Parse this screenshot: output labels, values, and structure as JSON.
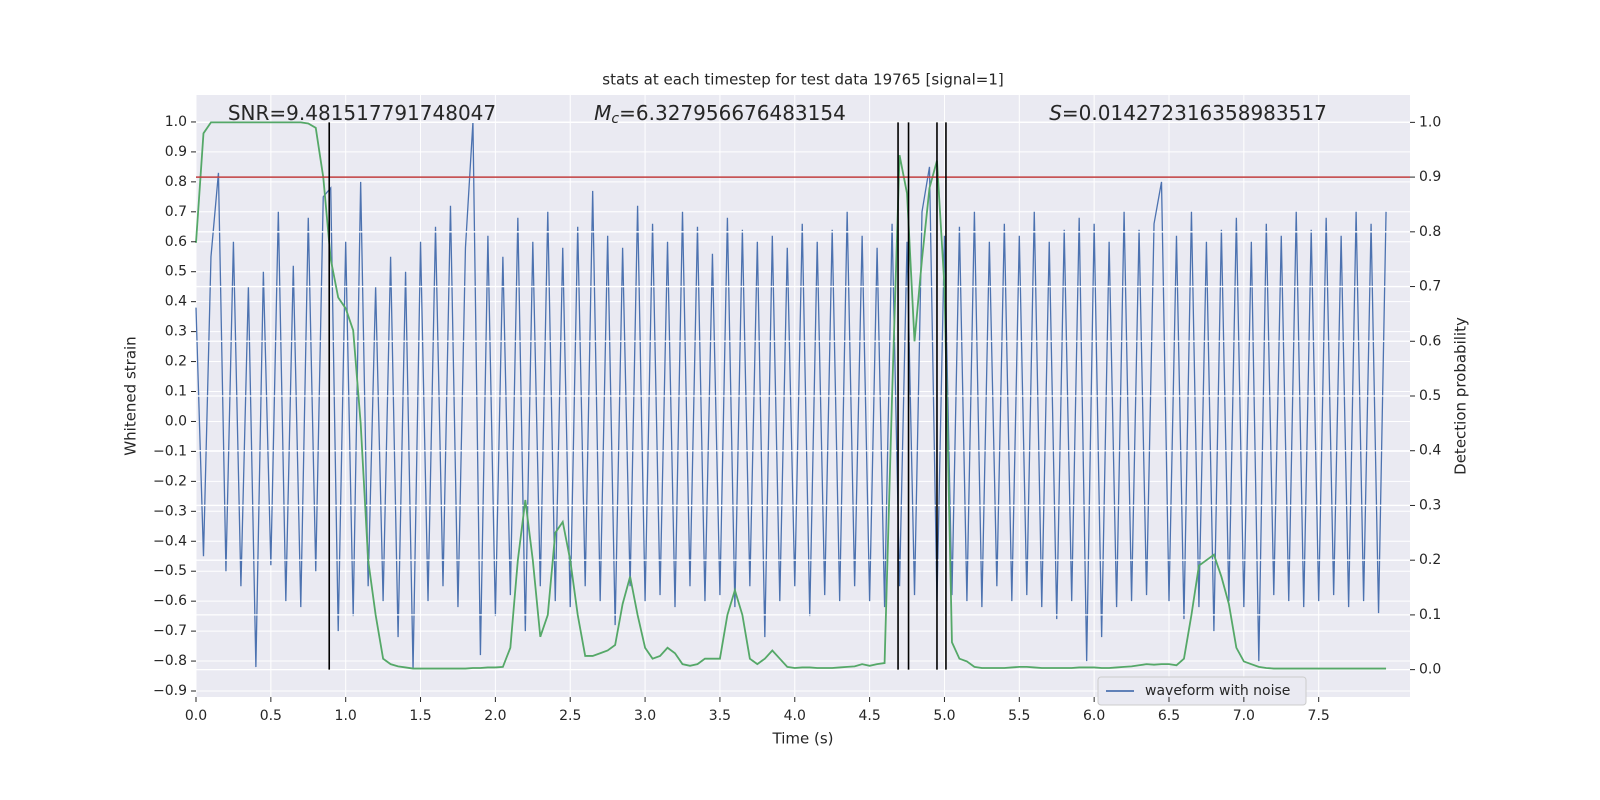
{
  "chart_data": {
    "type": "line",
    "title": "stats at each timestep for test data 19765 [signal=1]",
    "xlabel": "Time (s)",
    "ylabel": "Whitened strain",
    "y2label": "Detection probability",
    "xlim": [
      0,
      8.11
    ],
    "ylim": [
      -0.92,
      1.09
    ],
    "y2lim": [
      -0.05,
      1.05
    ],
    "xticks": [
      {
        "value": 0,
        "label": "0.0"
      },
      0.5,
      {
        "value": 1,
        "label": "1.0"
      },
      1.5,
      {
        "value": 2,
        "label": "2.0"
      },
      2.5,
      {
        "value": 3,
        "label": "3.0"
      },
      3.5,
      {
        "value": 4,
        "label": "4.0"
      },
      4.5,
      {
        "value": 5,
        "label": "5.0"
      },
      5.5,
      {
        "value": 6,
        "label": "6.0"
      },
      6.5,
      {
        "value": 7,
        "label": "7.0"
      },
      7.5
    ],
    "yticks": [
      {
        "value": -0.9,
        "label": "−0.9"
      },
      {
        "value": -0.8,
        "label": "−0.8"
      },
      {
        "value": -0.7,
        "label": "−0.7"
      },
      {
        "value": -0.6,
        "label": "−0.6"
      },
      {
        "value": -0.5,
        "label": "−0.5"
      },
      {
        "value": -0.4,
        "label": "−0.4"
      },
      {
        "value": -0.3,
        "label": "−0.3"
      },
      {
        "value": -0.2,
        "label": "−0.2"
      },
      {
        "value": -0.1,
        "label": "−0.1"
      },
      {
        "value": 0,
        "label": "0.0"
      },
      0.1,
      0.2,
      0.3,
      0.4,
      0.5,
      0.6,
      0.7,
      0.8,
      0.9,
      {
        "value": 1,
        "label": "1.0"
      }
    ],
    "y2ticks": [
      {
        "value": 0,
        "label": "0.0"
      },
      0.1,
      0.2,
      0.3,
      0.4,
      0.5,
      0.6,
      0.7,
      0.8,
      0.9,
      {
        "value": 1,
        "label": "1.0"
      }
    ],
    "grid": true,
    "legend": "lower right",
    "x": [
      0,
      0.05,
      0.1,
      0.15,
      0.2,
      0.25,
      0.3,
      0.35,
      0.4,
      0.45,
      0.5,
      0.55,
      0.6,
      0.65,
      0.7,
      0.75,
      0.8,
      0.85,
      0.9,
      0.95,
      1,
      1.05,
      1.1,
      1.15,
      1.2,
      1.25,
      1.3,
      1.35,
      1.4,
      1.45,
      1.5,
      1.55,
      1.6,
      1.65,
      1.7,
      1.75,
      1.8,
      1.85,
      1.9,
      1.95,
      2,
      2.05,
      2.1,
      2.15,
      2.2,
      2.25,
      2.3,
      2.35,
      2.4,
      2.45,
      2.5,
      2.55,
      2.6,
      2.65,
      2.7,
      2.75,
      2.8,
      2.85,
      2.9,
      2.95,
      3,
      3.05,
      3.1,
      3.15,
      3.2,
      3.25,
      3.3,
      3.35,
      3.4,
      3.45,
      3.5,
      3.55,
      3.6,
      3.65,
      3.7,
      3.75,
      3.8,
      3.85,
      3.9,
      3.95,
      4,
      4.05,
      4.1,
      4.15,
      4.2,
      4.25,
      4.3,
      4.35,
      4.4,
      4.45,
      4.5,
      4.55,
      4.6,
      4.65,
      4.7,
      4.75,
      4.8,
      4.85,
      4.9,
      4.95,
      5,
      5.05,
      5.1,
      5.15,
      5.2,
      5.25,
      5.3,
      5.35,
      5.4,
      5.45,
      5.5,
      5.55,
      5.6,
      5.65,
      5.7,
      5.75,
      5.8,
      5.85,
      5.9,
      5.95,
      6,
      6.05,
      6.1,
      6.15,
      6.2,
      6.25,
      6.3,
      6.35,
      6.4,
      6.45,
      6.5,
      6.55,
      6.6,
      6.65,
      6.7,
      6.75,
      6.8,
      6.85,
      6.9,
      6.95,
      7,
      7.05,
      7.1,
      7.15,
      7.2,
      7.25,
      7.3,
      7.35,
      7.4,
      7.45,
      7.5,
      7.55,
      7.6,
      7.65,
      7.7,
      7.75,
      7.8,
      7.85,
      7.9,
      7.95
    ],
    "series": [
      {
        "name": "waveform with noise",
        "color": "#4c72b0",
        "values": [
          0.38,
          -0.45,
          0.55,
          0.83,
          -0.5,
          0.6,
          -0.55,
          0.45,
          -0.82,
          0.5,
          -0.48,
          0.7,
          -0.6,
          0.52,
          -0.62,
          0.68,
          -0.5,
          0.75,
          0.78,
          -0.7,
          0.6,
          -0.65,
          0.8,
          -0.55,
          0.45,
          -0.6,
          0.55,
          -0.72,
          0.5,
          -0.83,
          0.6,
          -0.6,
          0.65,
          -0.55,
          0.72,
          -0.62,
          0.58,
          1.0,
          -0.78,
          0.62,
          -0.65,
          0.55,
          -0.58,
          0.68,
          -0.7,
          0.6,
          -0.55,
          0.7,
          -0.6,
          0.58,
          -0.62,
          0.65,
          -0.55,
          0.77,
          -0.6,
          0.62,
          -0.68,
          0.58,
          -0.55,
          0.72,
          -0.6,
          0.66,
          -0.58,
          0.6,
          -0.62,
          0.7,
          -0.55,
          0.65,
          -0.6,
          0.56,
          -0.58,
          0.68,
          -0.62,
          0.64,
          -0.55,
          0.6,
          -0.72,
          0.62,
          -0.6,
          0.58,
          -0.55,
          0.66,
          -0.65,
          0.6,
          -0.58,
          0.64,
          -0.6,
          0.7,
          -0.55,
          0.62,
          -0.6,
          0.58,
          -0.62,
          0.66,
          -0.55,
          0.6,
          -0.58,
          0.7,
          0.85,
          -0.6,
          0.62,
          -0.58,
          0.65,
          -0.6,
          0.7,
          -0.62,
          0.6,
          -0.55,
          0.66,
          -0.6,
          0.62,
          -0.58,
          0.7,
          -0.62,
          0.6,
          -0.66,
          0.64,
          -0.6,
          0.68,
          -0.8,
          0.66,
          -0.72,
          0.6,
          -0.62,
          0.7,
          -0.6,
          0.64,
          -0.58,
          0.66,
          0.8,
          -0.6,
          0.62,
          -0.66,
          0.7,
          -0.62,
          0.6,
          -0.7,
          0.64,
          -0.6,
          0.68,
          -0.62,
          0.6,
          -0.8,
          0.66,
          -0.58,
          0.62,
          -0.6,
          0.7,
          -0.62,
          0.64,
          -0.6,
          0.68,
          -0.58,
          0.62,
          -0.62,
          0.7,
          -0.6,
          0.66,
          -0.64,
          0.7
        ]
      },
      {
        "color": "#55a868",
        "axis": "y2",
        "values": [
          0.78,
          0.98,
          1.0,
          1.0,
          1.0,
          1.0,
          1.0,
          1.0,
          1.0,
          1.0,
          1.0,
          1.0,
          1.0,
          1.0,
          1.0,
          0.998,
          0.99,
          0.9,
          0.75,
          0.68,
          0.66,
          0.62,
          0.45,
          0.2,
          0.1,
          0.02,
          0.01,
          0.006,
          0.004,
          0.002,
          0.002,
          0.002,
          0.002,
          0.002,
          0.002,
          0.002,
          0.002,
          0.003,
          0.003,
          0.004,
          0.004,
          0.005,
          0.04,
          0.2,
          0.31,
          0.2,
          0.06,
          0.1,
          0.25,
          0.27,
          0.2,
          0.1,
          0.025,
          0.025,
          0.03,
          0.035,
          0.045,
          0.12,
          0.17,
          0.1,
          0.04,
          0.02,
          0.025,
          0.04,
          0.03,
          0.01,
          0.007,
          0.01,
          0.02,
          0.02,
          0.02,
          0.1,
          0.145,
          0.1,
          0.02,
          0.01,
          0.02,
          0.035,
          0.02,
          0.005,
          0.003,
          0.004,
          0.004,
          0.003,
          0.003,
          0.003,
          0.004,
          0.005,
          0.006,
          0.01,
          0.007,
          0.01,
          0.012,
          0.5,
          0.94,
          0.87,
          0.6,
          0.75,
          0.88,
          0.93,
          0.7,
          0.05,
          0.02,
          0.015,
          0.005,
          0.003,
          0.003,
          0.003,
          0.003,
          0.004,
          0.005,
          0.005,
          0.004,
          0.003,
          0.003,
          0.003,
          0.003,
          0.003,
          0.004,
          0.004,
          0.004,
          0.003,
          0.003,
          0.004,
          0.005,
          0.006,
          0.008,
          0.01,
          0.009,
          0.01,
          0.01,
          0.008,
          0.02,
          0.1,
          0.19,
          0.2,
          0.21,
          0.17,
          0.12,
          0.04,
          0.015,
          0.01,
          0.005,
          0.003,
          0.002,
          0.002,
          0.002,
          0.002,
          0.002,
          0.002,
          0.002,
          0.002,
          0.002,
          0.002,
          0.002,
          0.002,
          0.002,
          0.002,
          0.002,
          0.002
        ]
      }
    ],
    "threshold": {
      "value": 0.9,
      "axis": "y2",
      "color": "#c03d3e"
    },
    "vlines": {
      "values": [
        0.89,
        4.69,
        4.76,
        4.95,
        5.01
      ],
      "color": "#000000"
    },
    "annotations": [
      {
        "text": "SNR=9.481517791748047"
      },
      {
        "symbol": "M",
        "sub": "c",
        "text": "=6.327956676483154"
      },
      {
        "symbol": "S",
        "text": "=0.014272316358983517"
      }
    ]
  }
}
